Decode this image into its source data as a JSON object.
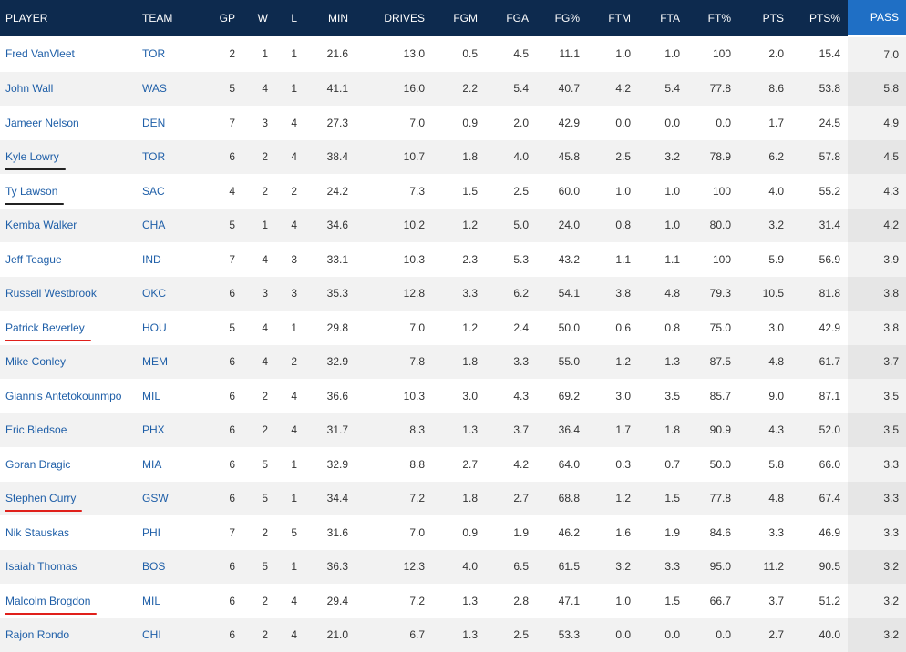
{
  "columns": [
    {
      "key": "player",
      "label": "PLAYER"
    },
    {
      "key": "team",
      "label": "TEAM"
    },
    {
      "key": "gp",
      "label": "GP"
    },
    {
      "key": "w",
      "label": "W"
    },
    {
      "key": "l",
      "label": "L"
    },
    {
      "key": "min",
      "label": "MIN"
    },
    {
      "key": "drives",
      "label": "DRIVES"
    },
    {
      "key": "fgm",
      "label": "FGM"
    },
    {
      "key": "fga",
      "label": "FGA"
    },
    {
      "key": "fgp",
      "label": "FG%"
    },
    {
      "key": "ftm",
      "label": "FTM"
    },
    {
      "key": "fta",
      "label": "FTA"
    },
    {
      "key": "ftp",
      "label": "FT%"
    },
    {
      "key": "pts",
      "label": "PTS"
    },
    {
      "key": "ptsp",
      "label": "PTS%"
    },
    {
      "key": "pass",
      "label": "PASS"
    }
  ],
  "sorted_column": "pass",
  "colors": {
    "header_bg": "#0d2a4e",
    "sorted_header_bg": "#1f6fc5",
    "link": "#1f5fa8",
    "underline_black": "#222222",
    "underline_red": "#e0201b"
  },
  "rows": [
    {
      "player": "Fred VanVleet",
      "team": "TOR",
      "gp": "2",
      "w": "1",
      "l": "1",
      "min": "21.6",
      "drives": "13.0",
      "fgm": "0.5",
      "fga": "4.5",
      "fgp": "11.1",
      "ftm": "1.0",
      "fta": "1.0",
      "ftp": "100",
      "pts": "2.0",
      "ptsp": "15.4",
      "pass": "7.0"
    },
    {
      "player": "John Wall",
      "team": "WAS",
      "gp": "5",
      "w": "4",
      "l": "1",
      "min": "41.1",
      "drives": "16.0",
      "fgm": "2.2",
      "fga": "5.4",
      "fgp": "40.7",
      "ftm": "4.2",
      "fta": "5.4",
      "ftp": "77.8",
      "pts": "8.6",
      "ptsp": "53.8",
      "pass": "5.8"
    },
    {
      "player": "Jameer Nelson",
      "team": "DEN",
      "gp": "7",
      "w": "3",
      "l": "4",
      "min": "27.3",
      "drives": "7.0",
      "fgm": "0.9",
      "fga": "2.0",
      "fgp": "42.9",
      "ftm": "0.0",
      "fta": "0.0",
      "ftp": "0.0",
      "pts": "1.7",
      "ptsp": "24.5",
      "pass": "4.9"
    },
    {
      "player": "Kyle Lowry",
      "team": "TOR",
      "gp": "6",
      "w": "2",
      "l": "4",
      "min": "38.4",
      "drives": "10.7",
      "fgm": "1.8",
      "fga": "4.0",
      "fgp": "45.8",
      "ftm": "2.5",
      "fta": "3.2",
      "ftp": "78.9",
      "pts": "6.2",
      "ptsp": "57.8",
      "pass": "4.5",
      "underline": "black"
    },
    {
      "player": "Ty Lawson",
      "team": "SAC",
      "gp": "4",
      "w": "2",
      "l": "2",
      "min": "24.2",
      "drives": "7.3",
      "fgm": "1.5",
      "fga": "2.5",
      "fgp": "60.0",
      "ftm": "1.0",
      "fta": "1.0",
      "ftp": "100",
      "pts": "4.0",
      "ptsp": "55.2",
      "pass": "4.3",
      "underline": "black"
    },
    {
      "player": "Kemba Walker",
      "team": "CHA",
      "gp": "5",
      "w": "1",
      "l": "4",
      "min": "34.6",
      "drives": "10.2",
      "fgm": "1.2",
      "fga": "5.0",
      "fgp": "24.0",
      "ftm": "0.8",
      "fta": "1.0",
      "ftp": "80.0",
      "pts": "3.2",
      "ptsp": "31.4",
      "pass": "4.2"
    },
    {
      "player": "Jeff Teague",
      "team": "IND",
      "gp": "7",
      "w": "4",
      "l": "3",
      "min": "33.1",
      "drives": "10.3",
      "fgm": "2.3",
      "fga": "5.3",
      "fgp": "43.2",
      "ftm": "1.1",
      "fta": "1.1",
      "ftp": "100",
      "pts": "5.9",
      "ptsp": "56.9",
      "pass": "3.9"
    },
    {
      "player": "Russell Westbrook",
      "team": "OKC",
      "gp": "6",
      "w": "3",
      "l": "3",
      "min": "35.3",
      "drives": "12.8",
      "fgm": "3.3",
      "fga": "6.2",
      "fgp": "54.1",
      "ftm": "3.8",
      "fta": "4.8",
      "ftp": "79.3",
      "pts": "10.5",
      "ptsp": "81.8",
      "pass": "3.8"
    },
    {
      "player": "Patrick Beverley",
      "team": "HOU",
      "gp": "5",
      "w": "4",
      "l": "1",
      "min": "29.8",
      "drives": "7.0",
      "fgm": "1.2",
      "fga": "2.4",
      "fgp": "50.0",
      "ftm": "0.6",
      "fta": "0.8",
      "ftp": "75.0",
      "pts": "3.0",
      "ptsp": "42.9",
      "pass": "3.8",
      "underline": "red"
    },
    {
      "player": "Mike Conley",
      "team": "MEM",
      "gp": "6",
      "w": "4",
      "l": "2",
      "min": "32.9",
      "drives": "7.8",
      "fgm": "1.8",
      "fga": "3.3",
      "fgp": "55.0",
      "ftm": "1.2",
      "fta": "1.3",
      "ftp": "87.5",
      "pts": "4.8",
      "ptsp": "61.7",
      "pass": "3.7"
    },
    {
      "player": "Giannis Antetokounmpo",
      "team": "MIL",
      "gp": "6",
      "w": "2",
      "l": "4",
      "min": "36.6",
      "drives": "10.3",
      "fgm": "3.0",
      "fga": "4.3",
      "fgp": "69.2",
      "ftm": "3.0",
      "fta": "3.5",
      "ftp": "85.7",
      "pts": "9.0",
      "ptsp": "87.1",
      "pass": "3.5"
    },
    {
      "player": "Eric Bledsoe",
      "team": "PHX",
      "gp": "6",
      "w": "2",
      "l": "4",
      "min": "31.7",
      "drives": "8.3",
      "fgm": "1.3",
      "fga": "3.7",
      "fgp": "36.4",
      "ftm": "1.7",
      "fta": "1.8",
      "ftp": "90.9",
      "pts": "4.3",
      "ptsp": "52.0",
      "pass": "3.5"
    },
    {
      "player": "Goran Dragic",
      "team": "MIA",
      "gp": "6",
      "w": "5",
      "l": "1",
      "min": "32.9",
      "drives": "8.8",
      "fgm": "2.7",
      "fga": "4.2",
      "fgp": "64.0",
      "ftm": "0.3",
      "fta": "0.7",
      "ftp": "50.0",
      "pts": "5.8",
      "ptsp": "66.0",
      "pass": "3.3"
    },
    {
      "player": "Stephen Curry",
      "team": "GSW",
      "gp": "6",
      "w": "5",
      "l": "1",
      "min": "34.4",
      "drives": "7.2",
      "fgm": "1.8",
      "fga": "2.7",
      "fgp": "68.8",
      "ftm": "1.2",
      "fta": "1.5",
      "ftp": "77.8",
      "pts": "4.8",
      "ptsp": "67.4",
      "pass": "3.3",
      "underline": "red"
    },
    {
      "player": "Nik Stauskas",
      "team": "PHI",
      "gp": "7",
      "w": "2",
      "l": "5",
      "min": "31.6",
      "drives": "7.0",
      "fgm": "0.9",
      "fga": "1.9",
      "fgp": "46.2",
      "ftm": "1.6",
      "fta": "1.9",
      "ftp": "84.6",
      "pts": "3.3",
      "ptsp": "46.9",
      "pass": "3.3"
    },
    {
      "player": "Isaiah Thomas",
      "team": "BOS",
      "gp": "6",
      "w": "5",
      "l": "1",
      "min": "36.3",
      "drives": "12.3",
      "fgm": "4.0",
      "fga": "6.5",
      "fgp": "61.5",
      "ftm": "3.2",
      "fta": "3.3",
      "ftp": "95.0",
      "pts": "11.2",
      "ptsp": "90.5",
      "pass": "3.2"
    },
    {
      "player": "Malcolm Brogdon",
      "team": "MIL",
      "gp": "6",
      "w": "2",
      "l": "4",
      "min": "29.4",
      "drives": "7.2",
      "fgm": "1.3",
      "fga": "2.8",
      "fgp": "47.1",
      "ftm": "1.0",
      "fta": "1.5",
      "ftp": "66.7",
      "pts": "3.7",
      "ptsp": "51.2",
      "pass": "3.2",
      "underline": "red"
    },
    {
      "player": "Rajon Rondo",
      "team": "CHI",
      "gp": "6",
      "w": "2",
      "l": "4",
      "min": "21.0",
      "drives": "6.7",
      "fgm": "1.3",
      "fga": "2.5",
      "fgp": "53.3",
      "ftm": "0.0",
      "fta": "0.0",
      "ftp": "0.0",
      "pts": "2.7",
      "ptsp": "40.0",
      "pass": "3.2"
    }
  ]
}
